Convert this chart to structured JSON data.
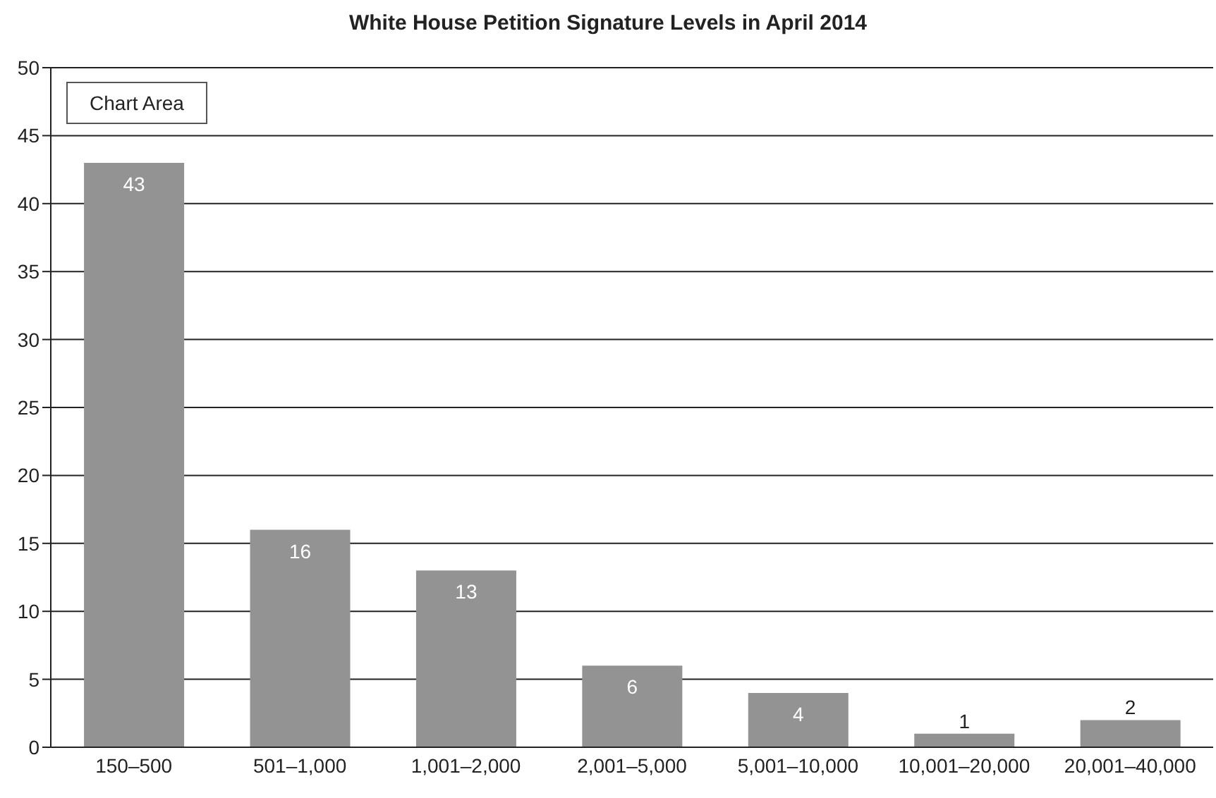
{
  "chart_data": {
    "type": "bar",
    "title": "White House Petition Signature Levels in April 2014",
    "categories": [
      "150–500",
      "501–1,000",
      "1,001–2,000",
      "2,001–5,000",
      "5,001–10,000",
      "10,001–20,000",
      "20,001–40,000"
    ],
    "values": [
      43,
      16,
      13,
      6,
      4,
      1,
      2
    ],
    "color": "#939393",
    "ylim": [
      0,
      50
    ],
    "yticks": [
      0,
      5,
      10,
      15,
      20,
      25,
      30,
      35,
      40,
      45,
      50
    ],
    "grid": "y",
    "data_labels": true,
    "annotations": [
      "Chart Area"
    ]
  }
}
